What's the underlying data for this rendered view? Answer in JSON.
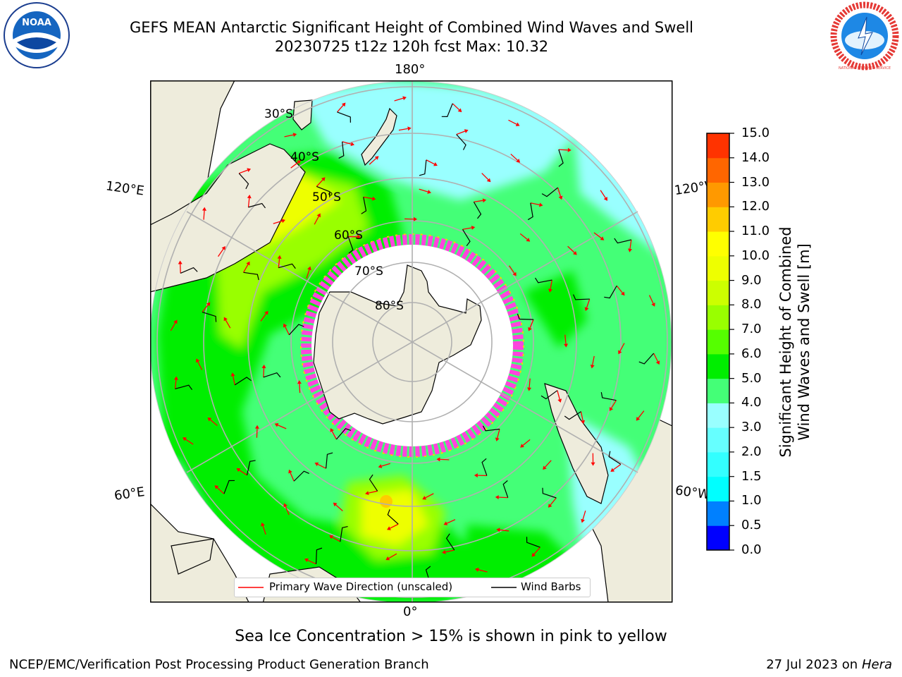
{
  "header": {
    "title": "GEFS MEAN Antarctic Significant Height of Combined Wind Waves and Swell",
    "subtitle": "20230725 t12z 120h fcst   Max: 10.32"
  },
  "logos": {
    "left": {
      "text": "NOAA"
    },
    "right": {
      "text": "NATIONAL WEATHER SERVICE"
    }
  },
  "map": {
    "projection": "south-polar-stereographic",
    "longitude_labels": {
      "top": "180°",
      "bottom": "0°",
      "left_upper": "120°E",
      "left_lower": "60°E",
      "right_upper": "120°W",
      "right_lower": "60°W"
    },
    "latitude_labels": [
      "30°S",
      "40°S",
      "50°S",
      "60°S",
      "70°S",
      "80°S"
    ],
    "colors": {
      "land": "#eeecdc",
      "ocean_low": "#99ffff",
      "ocean_mid": "#00ff00",
      "sea_ice": "#ff44dd",
      "arrows": "#ff0000",
      "barbs": "#000000",
      "grid": "#b0b0b0"
    }
  },
  "legend": {
    "primary_wave_direction": "Primary Wave Direction (unscaled)",
    "wind_barbs": "Wind Barbs"
  },
  "colorbar": {
    "label_line1": "Significant Height of Combined",
    "label_line2": "Wind Waves and Swell [m]",
    "ticks": [
      "0.0",
      "0.5",
      "1.0",
      "1.5",
      "2.0",
      "3.0",
      "4.0",
      "5.0",
      "6.0",
      "7.0",
      "8.0",
      "9.0",
      "10.0",
      "11.0",
      "12.0",
      "13.0",
      "14.0",
      "15.0"
    ],
    "colors": [
      "#0000ff",
      "#0080ff",
      "#00ffff",
      "#33ffff",
      "#66ffff",
      "#99ffff",
      "#44ff77",
      "#00ee00",
      "#55ff00",
      "#99ff00",
      "#ccff00",
      "#eeff00",
      "#ffff00",
      "#ffcc00",
      "#ff9900",
      "#ff6600",
      "#ff3300",
      "#ff0000"
    ]
  },
  "note": "Sea Ice Concentration > 15% is shown in pink to yellow",
  "footer": {
    "left": "NCEP/EMC/Verification Post Processing Product Generation Branch",
    "right_prefix": "27 Jul 2023 on ",
    "right_italic": "Hera"
  }
}
